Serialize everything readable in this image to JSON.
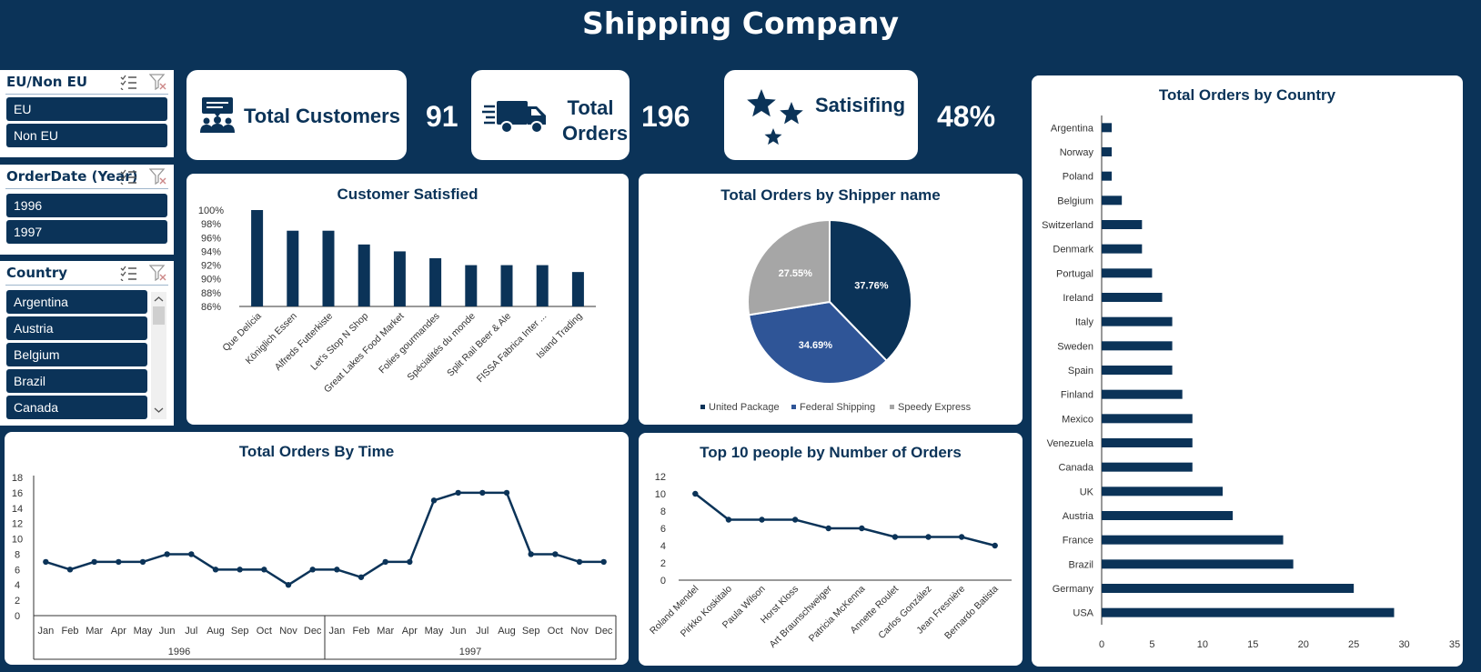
{
  "title": "Shipping Company",
  "colors": {
    "navy": "#0b3358",
    "mid": "#2f5597",
    "gray": "#a6a6a6",
    "white": "#ffffff"
  },
  "slicers": {
    "eu": {
      "header": "EU/Non EU",
      "items": [
        "EU",
        "Non EU"
      ]
    },
    "year": {
      "header": "OrderDate (Year)",
      "items": [
        "1996",
        "1997"
      ]
    },
    "country": {
      "header": "Country",
      "items": [
        "Argentina",
        "Austria",
        "Belgium",
        "Brazil",
        "Canada"
      ]
    }
  },
  "kpis": {
    "customers": {
      "label": "Total Customers",
      "value": "91"
    },
    "orders": {
      "label_line1": "Total",
      "label_line2": "Orders",
      "value": "196"
    },
    "satisfying": {
      "label": "Satisifing",
      "value": "48%"
    }
  },
  "chart_data": [
    {
      "id": "customer_satisfied",
      "type": "bar",
      "title": "Customer Satisfied",
      "categories": [
        "Que Delícia",
        "Königlich Essen",
        "Alfreds Futterkiste",
        "Let's Stop N Shop",
        "Great Lakes Food Market",
        "Folies gourmandes",
        "Spécialités du monde",
        "Split Rail Beer & Ale",
        "FISSA Fabrica Inter ...",
        "Island Trading"
      ],
      "values": [
        100,
        97,
        97,
        95,
        94,
        93,
        92,
        92,
        92,
        91
      ],
      "ylim": [
        86,
        100
      ],
      "yticks": [
        "100%",
        "98%",
        "96%",
        "94%",
        "92%",
        "90%",
        "88%",
        "86%"
      ]
    },
    {
      "id": "orders_by_shipper",
      "type": "pie",
      "title": "Total Orders by Shipper name",
      "labels": [
        "United Package",
        "Federal Shipping",
        "Speedy Express"
      ],
      "values": [
        37.76,
        34.69,
        27.55
      ],
      "data_labels": [
        "37.76%",
        "34.69%",
        "27.55%"
      ]
    },
    {
      "id": "orders_by_country",
      "type": "bar",
      "orientation": "horizontal",
      "title": "Total Orders by Country",
      "categories": [
        "Argentina",
        "Norway",
        "Poland",
        "Belgium",
        "Switzerland",
        "Denmark",
        "Portugal",
        "Ireland",
        "Italy",
        "Sweden",
        "Spain",
        "Finland",
        "Mexico",
        "Venezuela",
        "Canada",
        "UK",
        "Austria",
        "France",
        "Brazil",
        "Germany",
        "USA"
      ],
      "values": [
        1,
        1,
        1,
        2,
        4,
        4,
        5,
        6,
        7,
        7,
        7,
        8,
        9,
        9,
        9,
        12,
        13,
        18,
        19,
        25,
        29
      ],
      "xlim": [
        0,
        35
      ],
      "xticks": [
        "0",
        "5",
        "10",
        "15",
        "20",
        "25",
        "30",
        "35"
      ]
    },
    {
      "id": "orders_by_time",
      "type": "line",
      "title": "Total Orders By Time",
      "months": [
        "Jan",
        "Feb",
        "Mar",
        "Apr",
        "May",
        "Jun",
        "Jul",
        "Aug",
        "Sep",
        "Oct",
        "Nov",
        "Dec",
        "Jan",
        "Feb",
        "Mar",
        "Apr",
        "May",
        "Jun",
        "Jul",
        "Aug",
        "Sep",
        "Oct",
        "Nov",
        "Dec"
      ],
      "years": [
        "1996",
        "1997"
      ],
      "values": [
        7,
        6,
        7,
        7,
        7,
        8,
        8,
        6,
        6,
        6,
        4,
        6,
        6,
        5,
        7,
        7,
        15,
        16,
        16,
        16,
        8,
        8,
        7,
        7
      ],
      "ylim": [
        0,
        18
      ],
      "yticks": [
        "18",
        "16",
        "14",
        "12",
        "10",
        "8",
        "6",
        "4",
        "2",
        "0"
      ]
    },
    {
      "id": "top10_people",
      "type": "line",
      "title": "Top 10 people by Number of Orders",
      "categories": [
        "Roland Mendel",
        "Pirkko Koskitalo",
        "Paula Wilson",
        "Horst Kloss",
        "Art Braunschweiger",
        "Patricia McKenna",
        "Annette Roulet",
        "Carlos González",
        "Jean Fresnière",
        "Bernardo Batista"
      ],
      "values": [
        10,
        7,
        7,
        7,
        6,
        6,
        5,
        5,
        5,
        4
      ],
      "ylim": [
        0,
        12
      ],
      "yticks": [
        "12",
        "10",
        "8",
        "6",
        "4",
        "2",
        "0"
      ]
    }
  ]
}
